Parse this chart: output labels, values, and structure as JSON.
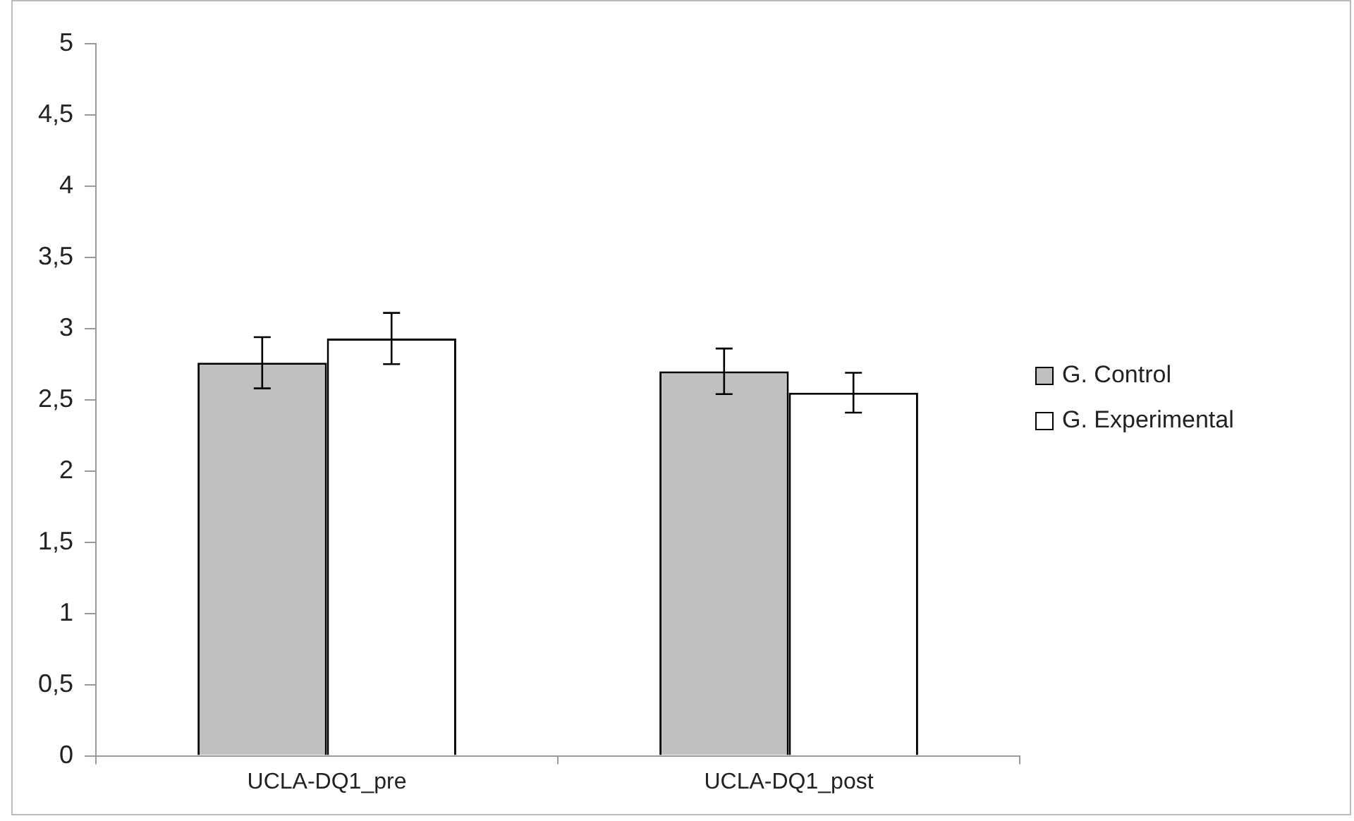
{
  "chart_data": {
    "type": "bar",
    "categories": [
      "UCLA-DQ1_pre",
      "UCLA-DQ1_post"
    ],
    "series": [
      {
        "name": "G. Control",
        "color": "#c0c0c0",
        "values": [
          2.76,
          2.7
        ],
        "errors": [
          0.18,
          0.16
        ]
      },
      {
        "name": "G. Experimental",
        "color": "#ffffff",
        "values": [
          2.93,
          2.55
        ],
        "errors": [
          0.18,
          0.14
        ]
      }
    ],
    "ylim": [
      0,
      5
    ],
    "yticks": [
      0,
      {
        "value": 0.5,
        "label": "0,5"
      },
      1,
      {
        "value": 1.5,
        "label": "1,5"
      },
      2,
      {
        "value": 2.5,
        "label": "2,5"
      },
      3,
      {
        "value": 3.5,
        "label": "3,5"
      },
      4,
      {
        "value": 4.5,
        "label": "4,5"
      },
      5
    ],
    "grid": false,
    "legend": "right"
  }
}
